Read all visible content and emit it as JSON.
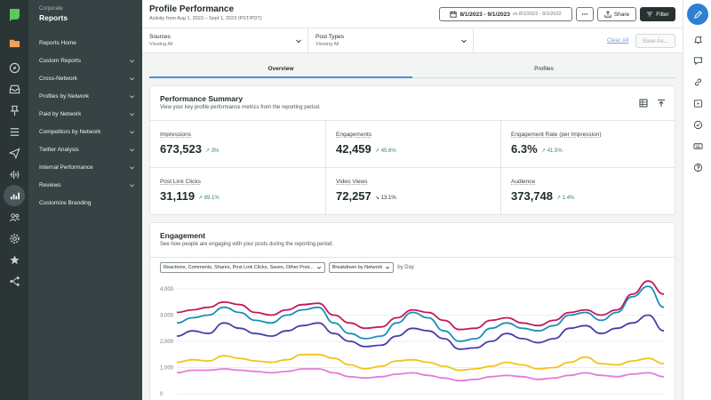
{
  "sidebar": {
    "super_title": "Corporate",
    "title": "Reports",
    "items": [
      {
        "label": "Reports Home",
        "has_chevron": false
      },
      {
        "label": "Custom Reports",
        "has_chevron": true
      },
      {
        "label": "Cross-Network",
        "has_chevron": true
      },
      {
        "label": "Profiles by Network",
        "has_chevron": true
      },
      {
        "label": "Paid by Network",
        "has_chevron": true
      },
      {
        "label": "Competitors by Network",
        "has_chevron": true
      },
      {
        "label": "Twitter Analysis",
        "has_chevron": true
      },
      {
        "label": "Internal Performance",
        "has_chevron": true
      },
      {
        "label": "Reviews",
        "has_chevron": true
      },
      {
        "label": "Customize Branding",
        "has_chevron": false
      }
    ]
  },
  "rail": {
    "icons": [
      "logo-icon",
      "folder-icon",
      "compass-icon",
      "inbox-icon",
      "pin-icon",
      "list-icon",
      "send-icon",
      "audio-wave-icon",
      "reports-icon",
      "people-icon",
      "gear-icon",
      "star-icon",
      "hierarchy-icon"
    ],
    "active": "reports-icon"
  },
  "header": {
    "title": "Profile Performance",
    "subtitle": "Activity from Aug 1, 2023 – Sept 1, 2023 (PST/PDT)",
    "date_range": "8/1/2023 - 9/1/2023",
    "date_compare": "vs 8/1/2022 - 9/1/2022",
    "share_label": "Share",
    "filter_label": "Filter"
  },
  "filters": {
    "sources": {
      "label": "Sources",
      "value": "Viewing All"
    },
    "post_types": {
      "label": "Post Types",
      "value": "Viewing All"
    },
    "clear_all": "Clear All",
    "save_as": "Save As..."
  },
  "tabs": [
    {
      "label": "Overview",
      "active": true
    },
    {
      "label": "Profiles",
      "active": false
    }
  ],
  "summary": {
    "title": "Performance Summary",
    "subtitle": "View your key profile performance metrics from the reporting period.",
    "metrics": [
      {
        "label": "Impressions",
        "value": "673,523",
        "delta": "3%",
        "direction": "up"
      },
      {
        "label": "Engagements",
        "value": "42,459",
        "delta": "45.6%",
        "direction": "up"
      },
      {
        "label": "Engagement Rate (per Impression)",
        "value": "6.3%",
        "delta": "41.5%",
        "direction": "up"
      },
      {
        "label": "Post Link Clicks",
        "value": "31,119",
        "delta": "89.1%",
        "direction": "up"
      },
      {
        "label": "Video Views",
        "value": "72,257",
        "delta": "13.1%",
        "direction": "down"
      },
      {
        "label": "Audience",
        "value": "373,748",
        "delta": "1.4%",
        "direction": "up"
      }
    ]
  },
  "engagement": {
    "title": "Engagement",
    "subtitle": "See how people are engaging with your posts during the reporting period.",
    "metric_select": "Reactions, Comments, Shares, Post Link Clicks, Saves, Other Post...",
    "breakdown_select": "Breakdown by Network",
    "by_day": "by Day"
  },
  "chart_data": {
    "type": "line",
    "title": "",
    "xlabel": "",
    "ylabel": "",
    "ylim": [
      0,
      4000
    ],
    "yticks": [
      "0",
      "1,000",
      "2,000",
      "3,000",
      "4,000"
    ],
    "x": [
      1,
      2,
      3,
      4,
      5,
      6,
      7,
      8,
      9,
      10,
      11,
      12,
      13,
      14,
      15,
      16,
      17,
      18,
      19,
      20,
      21,
      22,
      23,
      24,
      25,
      26,
      27,
      28,
      29,
      30,
      31,
      32
    ],
    "series": [
      {
        "color": "#c2185b",
        "values": [
          3100,
          3200,
          3300,
          3500,
          3400,
          3100,
          3000,
          3200,
          3400,
          3450,
          3000,
          2700,
          2500,
          2550,
          2900,
          3200,
          3100,
          2800,
          2450,
          2500,
          2800,
          2900,
          2700,
          2600,
          2800,
          3100,
          3200,
          3000,
          3200,
          3800,
          4300,
          3800
        ]
      },
      {
        "color": "#1a8fb8",
        "values": [
          2700,
          2900,
          3000,
          3300,
          3100,
          2800,
          2700,
          3000,
          3200,
          3300,
          2700,
          2300,
          2100,
          2200,
          2700,
          3100,
          2900,
          2400,
          2000,
          2100,
          2500,
          2700,
          2500,
          2400,
          2600,
          3000,
          3100,
          2800,
          3100,
          3700,
          4100,
          3300
        ]
      },
      {
        "color": "#4a3ba8",
        "values": [
          2200,
          2400,
          2300,
          2700,
          2500,
          2300,
          2200,
          2400,
          2600,
          2700,
          2300,
          2000,
          1800,
          1850,
          2200,
          2500,
          2400,
          2100,
          1700,
          1750,
          2000,
          2300,
          2100,
          1950,
          2100,
          2500,
          2600,
          2300,
          2500,
          2700,
          3000,
          2400
        ]
      },
      {
        "color": "#f0c419",
        "values": [
          1200,
          1300,
          1250,
          1450,
          1350,
          1250,
          1200,
          1300,
          1500,
          1500,
          1350,
          1100,
          950,
          1050,
          1250,
          1300,
          1200,
          1050,
          900,
          950,
          1050,
          1200,
          1100,
          950,
          1000,
          1200,
          1400,
          1150,
          1100,
          1250,
          1350,
          1150
        ]
      },
      {
        "color": "#e57ad9",
        "values": [
          800,
          900,
          900,
          950,
          900,
          850,
          800,
          850,
          950,
          950,
          800,
          650,
          600,
          650,
          750,
          800,
          700,
          600,
          500,
          550,
          650,
          700,
          650,
          550,
          600,
          700,
          800,
          700,
          650,
          750,
          800,
          650
        ]
      }
    ]
  },
  "right_rail": {
    "icons": [
      "compose-icon",
      "bell-icon",
      "message-icon",
      "link-icon",
      "video-icon",
      "checkmark-badge-icon",
      "keyboard-icon",
      "help-icon"
    ]
  }
}
